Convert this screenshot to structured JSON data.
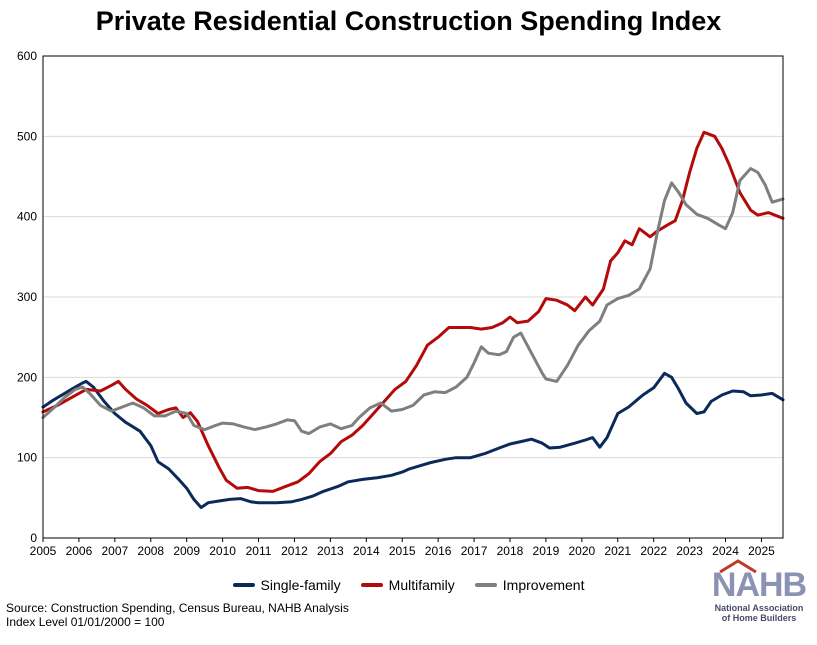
{
  "chart_data": {
    "type": "line",
    "title": "Private Residential Construction Spending Index",
    "xlim": [
      2005,
      2025.6
    ],
    "ylim": [
      0,
      600
    ],
    "yticks": [
      0,
      100,
      200,
      300,
      400,
      500,
      600
    ],
    "xticks": [
      "2005",
      "2006",
      "2007",
      "2008",
      "2009",
      "2010",
      "2011",
      "2012",
      "2013",
      "2014",
      "2015",
      "2016",
      "2017",
      "2018",
      "2019",
      "2020",
      "2021",
      "2022",
      "2023",
      "2024",
      "2025"
    ],
    "grid": true,
    "legend_position": "bottom",
    "series": [
      {
        "name": "Single-family",
        "color": "#0b2a5a",
        "points": [
          [
            2005,
            163
          ],
          [
            2005.3,
            172
          ],
          [
            2005.6,
            180
          ],
          [
            2005.9,
            188
          ],
          [
            2006.1,
            193
          ],
          [
            2006.2,
            195
          ],
          [
            2006.4,
            188
          ],
          [
            2006.7,
            170
          ],
          [
            2007,
            155
          ],
          [
            2007.3,
            144
          ],
          [
            2007.7,
            133
          ],
          [
            2008,
            115
          ],
          [
            2008.2,
            95
          ],
          [
            2008.5,
            86
          ],
          [
            2008.8,
            72
          ],
          [
            2009,
            62
          ],
          [
            2009.2,
            48
          ],
          [
            2009.4,
            38
          ],
          [
            2009.6,
            44
          ],
          [
            2009.9,
            46
          ],
          [
            2010.2,
            48
          ],
          [
            2010.5,
            49
          ],
          [
            2010.8,
            45
          ],
          [
            2011,
            44
          ],
          [
            2011.5,
            44
          ],
          [
            2011.9,
            45
          ],
          [
            2012.2,
            48
          ],
          [
            2012.5,
            52
          ],
          [
            2012.8,
            58
          ],
          [
            2013.2,
            64
          ],
          [
            2013.5,
            70
          ],
          [
            2013.9,
            73
          ],
          [
            2014.3,
            75
          ],
          [
            2014.7,
            78
          ],
          [
            2015,
            82
          ],
          [
            2015.2,
            86
          ],
          [
            2015.5,
            90
          ],
          [
            2015.8,
            94
          ],
          [
            2016.2,
            98
          ],
          [
            2016.5,
            100
          ],
          [
            2016.9,
            100
          ],
          [
            2017.3,
            105
          ],
          [
            2017.7,
            112
          ],
          [
            2018,
            117
          ],
          [
            2018.3,
            120
          ],
          [
            2018.6,
            123
          ],
          [
            2018.9,
            118
          ],
          [
            2019.1,
            112
          ],
          [
            2019.4,
            113
          ],
          [
            2019.8,
            118
          ],
          [
            2020.1,
            122
          ],
          [
            2020.3,
            125
          ],
          [
            2020.5,
            113
          ],
          [
            2020.7,
            125
          ],
          [
            2021,
            155
          ],
          [
            2021.3,
            163
          ],
          [
            2021.7,
            178
          ],
          [
            2022,
            187
          ],
          [
            2022.3,
            205
          ],
          [
            2022.5,
            200
          ],
          [
            2022.7,
            185
          ],
          [
            2022.9,
            168
          ],
          [
            2023.2,
            155
          ],
          [
            2023.4,
            157
          ],
          [
            2023.6,
            170
          ],
          [
            2023.9,
            178
          ],
          [
            2024.2,
            183
          ],
          [
            2024.5,
            182
          ],
          [
            2024.7,
            177
          ],
          [
            2025,
            178
          ],
          [
            2025.3,
            180
          ],
          [
            2025.6,
            172
          ]
        ]
      },
      {
        "name": "Multifamily",
        "color": "#b40a0a",
        "points": [
          [
            2005,
            157
          ],
          [
            2005.4,
            165
          ],
          [
            2005.8,
            175
          ],
          [
            2006.2,
            185
          ],
          [
            2006.6,
            183
          ],
          [
            2006.9,
            190
          ],
          [
            2007.1,
            195
          ],
          [
            2007.3,
            185
          ],
          [
            2007.6,
            173
          ],
          [
            2007.9,
            165
          ],
          [
            2008.2,
            155
          ],
          [
            2008.5,
            160
          ],
          [
            2008.7,
            162
          ],
          [
            2008.9,
            150
          ],
          [
            2009.1,
            156
          ],
          [
            2009.3,
            145
          ],
          [
            2009.6,
            115
          ],
          [
            2009.9,
            88
          ],
          [
            2010.1,
            72
          ],
          [
            2010.4,
            62
          ],
          [
            2010.7,
            63
          ],
          [
            2011,
            59
          ],
          [
            2011.4,
            58
          ],
          [
            2011.8,
            65
          ],
          [
            2012.1,
            70
          ],
          [
            2012.4,
            80
          ],
          [
            2012.7,
            95
          ],
          [
            2013,
            105
          ],
          [
            2013.3,
            120
          ],
          [
            2013.6,
            128
          ],
          [
            2013.9,
            140
          ],
          [
            2014.2,
            155
          ],
          [
            2014.5,
            170
          ],
          [
            2014.8,
            185
          ],
          [
            2015.1,
            195
          ],
          [
            2015.4,
            215
          ],
          [
            2015.7,
            240
          ],
          [
            2016,
            250
          ],
          [
            2016.3,
            262
          ],
          [
            2016.6,
            262
          ],
          [
            2016.9,
            262
          ],
          [
            2017.2,
            260
          ],
          [
            2017.5,
            262
          ],
          [
            2017.8,
            268
          ],
          [
            2018,
            275
          ],
          [
            2018.2,
            268
          ],
          [
            2018.5,
            270
          ],
          [
            2018.8,
            282
          ],
          [
            2019,
            298
          ],
          [
            2019.3,
            296
          ],
          [
            2019.6,
            290
          ],
          [
            2019.8,
            283
          ],
          [
            2020.1,
            300
          ],
          [
            2020.3,
            290
          ],
          [
            2020.6,
            310
          ],
          [
            2020.8,
            345
          ],
          [
            2021,
            355
          ],
          [
            2021.2,
            370
          ],
          [
            2021.4,
            365
          ],
          [
            2021.6,
            385
          ],
          [
            2021.9,
            375
          ],
          [
            2022.1,
            382
          ],
          [
            2022.4,
            390
          ],
          [
            2022.6,
            395
          ],
          [
            2022.8,
            420
          ],
          [
            2023,
            455
          ],
          [
            2023.2,
            485
          ],
          [
            2023.4,
            505
          ],
          [
            2023.7,
            500
          ],
          [
            2023.9,
            485
          ],
          [
            2024.1,
            465
          ],
          [
            2024.4,
            430
          ],
          [
            2024.7,
            408
          ],
          [
            2024.9,
            402
          ],
          [
            2025.2,
            405
          ],
          [
            2025.6,
            398
          ]
        ]
      },
      {
        "name": "Improvement",
        "color": "#7f7f7f",
        "points": [
          [
            2005,
            150
          ],
          [
            2005.3,
            162
          ],
          [
            2005.6,
            175
          ],
          [
            2005.9,
            185
          ],
          [
            2006.1,
            188
          ],
          [
            2006.3,
            180
          ],
          [
            2006.6,
            165
          ],
          [
            2006.9,
            158
          ],
          [
            2007.2,
            163
          ],
          [
            2007.5,
            168
          ],
          [
            2007.8,
            162
          ],
          [
            2008.1,
            152
          ],
          [
            2008.4,
            152
          ],
          [
            2008.7,
            158
          ],
          [
            2009,
            155
          ],
          [
            2009.2,
            140
          ],
          [
            2009.5,
            135
          ],
          [
            2009.8,
            140
          ],
          [
            2010,
            143
          ],
          [
            2010.3,
            142
          ],
          [
            2010.6,
            138
          ],
          [
            2010.9,
            135
          ],
          [
            2011.2,
            138
          ],
          [
            2011.5,
            142
          ],
          [
            2011.8,
            147
          ],
          [
            2012,
            146
          ],
          [
            2012.2,
            133
          ],
          [
            2012.4,
            130
          ],
          [
            2012.7,
            138
          ],
          [
            2013,
            142
          ],
          [
            2013.3,
            136
          ],
          [
            2013.6,
            140
          ],
          [
            2013.8,
            150
          ],
          [
            2014.1,
            162
          ],
          [
            2014.4,
            168
          ],
          [
            2014.7,
            158
          ],
          [
            2015,
            160
          ],
          [
            2015.3,
            165
          ],
          [
            2015.6,
            178
          ],
          [
            2015.9,
            182
          ],
          [
            2016.2,
            181
          ],
          [
            2016.5,
            188
          ],
          [
            2016.8,
            200
          ],
          [
            2017,
            218
          ],
          [
            2017.2,
            238
          ],
          [
            2017.4,
            230
          ],
          [
            2017.7,
            228
          ],
          [
            2017.9,
            232
          ],
          [
            2018.1,
            250
          ],
          [
            2018.3,
            255
          ],
          [
            2018.6,
            230
          ],
          [
            2018.9,
            205
          ],
          [
            2019,
            198
          ],
          [
            2019.3,
            195
          ],
          [
            2019.6,
            215
          ],
          [
            2019.9,
            240
          ],
          [
            2020.2,
            258
          ],
          [
            2020.5,
            270
          ],
          [
            2020.7,
            290
          ],
          [
            2021,
            298
          ],
          [
            2021.3,
            302
          ],
          [
            2021.6,
            310
          ],
          [
            2021.9,
            335
          ],
          [
            2022.1,
            380
          ],
          [
            2022.3,
            420
          ],
          [
            2022.5,
            442
          ],
          [
            2022.7,
            430
          ],
          [
            2022.9,
            415
          ],
          [
            2023.2,
            403
          ],
          [
            2023.5,
            398
          ],
          [
            2023.8,
            390
          ],
          [
            2024,
            385
          ],
          [
            2024.2,
            405
          ],
          [
            2024.4,
            445
          ],
          [
            2024.7,
            460
          ],
          [
            2024.9,
            455
          ],
          [
            2025.1,
            440
          ],
          [
            2025.3,
            418
          ],
          [
            2025.6,
            422
          ]
        ]
      }
    ]
  },
  "legend": {
    "items": [
      "Single-family",
      "Multifamily",
      "Improvement"
    ]
  },
  "source": {
    "line1": "Source: Construction Spending, Census Bureau, NAHB Analysis",
    "line2": "Index Level 01/01/2000 = 100"
  },
  "logo": {
    "main": "NAHB",
    "line1": "National Association",
    "line2": "of Home Builders"
  }
}
